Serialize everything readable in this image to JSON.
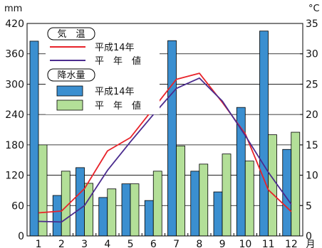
{
  "chart_data": {
    "type": "bar+line",
    "categories": [
      "1",
      "2",
      "3",
      "4",
      "5",
      "6",
      "7",
      "8",
      "9",
      "10",
      "11",
      "12"
    ],
    "month_suffix": "月",
    "y_left": {
      "unit": "mm",
      "ylim": [
        0,
        420
      ],
      "ticks": [
        0,
        60,
        120,
        180,
        240,
        300,
        360,
        420
      ]
    },
    "y_right": {
      "unit": "°C",
      "ylim": [
        0,
        35
      ],
      "ticks": [
        0,
        5,
        10,
        15,
        20,
        25,
        30,
        35
      ]
    },
    "legend": {
      "temp_group": "気　温",
      "precip_group": "降水量"
    },
    "precipitation": [
      {
        "name": "平成14年",
        "color": "#3b8fd0",
        "values": [
          385,
          80,
          135,
          76,
          103,
          70,
          386,
          128,
          87,
          254,
          405,
          171
        ]
      },
      {
        "name": "平　年　値",
        "color": "#b3df98",
        "values": [
          180,
          128,
          104,
          93,
          103,
          128,
          178,
          142,
          162,
          148,
          200,
          205
        ]
      }
    ],
    "temperature": [
      {
        "name": "平成14年",
        "color": "#e8232a",
        "values": [
          3.8,
          4.1,
          7.8,
          14.0,
          16.2,
          21.0,
          25.8,
          26.8,
          22.0,
          16.8,
          7.6,
          4.0
        ]
      },
      {
        "name": "平　年　値",
        "color": "#4b2c8e",
        "values": [
          2.4,
          2.3,
          5.0,
          10.8,
          15.5,
          20.0,
          24.3,
          26.0,
          22.2,
          16.5,
          10.5,
          5.2
        ]
      }
    ],
    "grid": true
  }
}
